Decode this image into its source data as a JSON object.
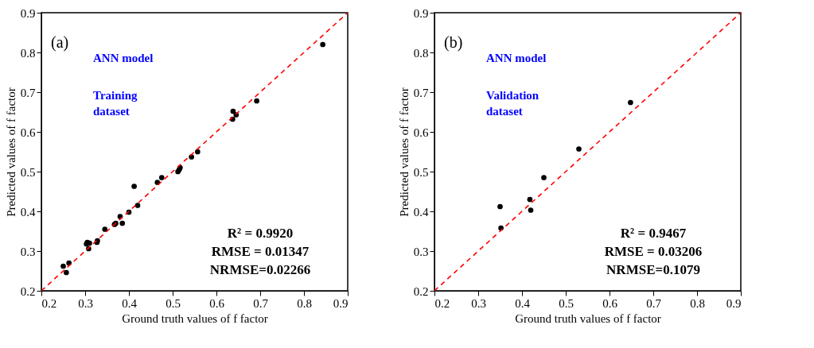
{
  "chart_data": [
    {
      "type": "scatter",
      "xlabel": "Ground truth values of f factor",
      "ylabel": "Predicted values of f factor",
      "annotations": [
        "(a)",
        "ANN model",
        "Training\ndataset",
        "R² = 0.9920\nRMSE = 0.01347\nNRMSE=0.02266"
      ],
      "xlim": [
        0.2,
        0.9
      ],
      "ylim": [
        0.2,
        0.9
      ],
      "xticks": [
        0.2,
        0.3,
        0.4,
        0.5,
        0.6,
        0.7,
        0.8,
        0.9
      ],
      "yticks": [
        0.2,
        0.3,
        0.4,
        0.5,
        0.6,
        0.7,
        0.8,
        0.9
      ],
      "grid": false,
      "series": [
        {
          "marker": "circle",
          "color": "#000000",
          "x": [
            0.25,
            0.257,
            0.263,
            0.303,
            0.305,
            0.308,
            0.31,
            0.327,
            0.328,
            0.345,
            0.367,
            0.37,
            0.38,
            0.385,
            0.4,
            0.412,
            0.42,
            0.465,
            0.475,
            0.512,
            0.515,
            0.517,
            0.543,
            0.557,
            0.637,
            0.638,
            0.645,
            0.692,
            0.843
          ],
          "values": [
            0.262,
            0.246,
            0.27,
            0.318,
            0.322,
            0.306,
            0.32,
            0.322,
            0.326,
            0.355,
            0.367,
            0.37,
            0.387,
            0.37,
            0.398,
            0.463,
            0.415,
            0.473,
            0.485,
            0.5,
            0.505,
            0.51,
            0.537,
            0.55,
            0.632,
            0.652,
            0.643,
            0.678,
            0.82
          ]
        },
        {
          "type": "line",
          "marker": "none",
          "color": "#ff0000",
          "line_style": "dashed",
          "x": [
            0.2,
            0.9
          ],
          "values": [
            0.2,
            0.9
          ]
        }
      ]
    },
    {
      "type": "scatter",
      "xlabel": "Ground truth values of f factor",
      "ylabel": "Predicted values of f factor",
      "annotations": [
        "(b)",
        "ANN model",
        "Validation\ndataset",
        "R² = 0.9467\nRMSE = 0.03206\nNRMSE=0.1079"
      ],
      "xlim": [
        0.2,
        0.9
      ],
      "ylim": [
        0.2,
        0.9
      ],
      "xticks": [
        0.2,
        0.3,
        0.4,
        0.5,
        0.6,
        0.7,
        0.8,
        0.9
      ],
      "yticks": [
        0.2,
        0.3,
        0.4,
        0.5,
        0.6,
        0.7,
        0.8,
        0.9
      ],
      "grid": false,
      "series": [
        {
          "marker": "circle",
          "color": "#000000",
          "x": [
            0.35,
            0.352,
            0.418,
            0.42,
            0.45,
            0.53,
            0.648
          ],
          "values": [
            0.412,
            0.358,
            0.43,
            0.403,
            0.485,
            0.557,
            0.674
          ]
        },
        {
          "type": "line",
          "marker": "none",
          "color": "#ff0000",
          "line_style": "dashed",
          "x": [
            0.2,
            0.9
          ],
          "values": [
            0.2,
            0.9
          ]
        }
      ]
    }
  ]
}
